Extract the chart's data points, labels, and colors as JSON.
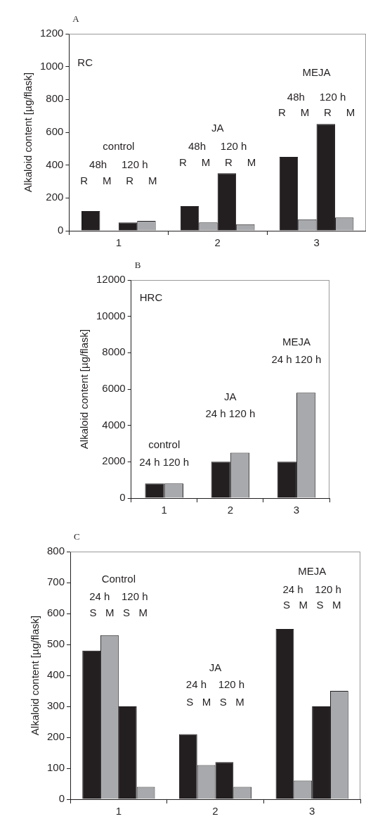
{
  "chart_data": [
    {
      "type": "bar",
      "title": "A",
      "ylabel": "Alkaloid content [µg/flask]",
      "categories": [
        "1",
        "2",
        "3"
      ],
      "series": [
        {
          "color": "#231f20",
          "values": [
            120,
            150,
            450
          ]
        },
        {
          "color": "#a7a9ac",
          "values": [
            null,
            50,
            70
          ]
        },
        {
          "color": "#231f20",
          "values": [
            50,
            350,
            650
          ]
        },
        {
          "color": "#a7a9ac",
          "values": [
            60,
            40,
            80
          ]
        }
      ],
      "ylim": [
        0,
        1200
      ],
      "yticks": [
        0,
        200,
        400,
        600,
        800,
        1000,
        1200
      ],
      "grid": false,
      "legend": false,
      "annotations": [
        "RC",
        "control",
        "48h     120 h",
        "R     M     R     M",
        "JA",
        "48h     120 h",
        "R     M     R     M",
        "MEJA",
        "48h     120 h",
        "R     M     R     M"
      ]
    },
    {
      "type": "bar",
      "title": "B",
      "ylabel": "Alkaloid content [µg/flask]",
      "categories": [
        "1",
        "2",
        "3"
      ],
      "series": [
        {
          "color": "#231f20",
          "values": [
            800,
            2000,
            2000
          ]
        },
        {
          "color": "#a7a9ac",
          "values": [
            800,
            2500,
            5800
          ]
        }
      ],
      "ylim": [
        0,
        12000
      ],
      "yticks": [
        0,
        2000,
        4000,
        6000,
        8000,
        10000,
        12000
      ],
      "grid": false,
      "legend": false,
      "annotations": [
        "HRC",
        "control",
        "24 h 120 h",
        "JA",
        "24 h 120 h",
        "MEJA",
        "24 h 120 h"
      ]
    },
    {
      "type": "bar",
      "title": "C",
      "ylabel": "Alkaloid content [µg/flask]",
      "categories": [
        "1",
        "2",
        "3"
      ],
      "series": [
        {
          "color": "#231f20",
          "values": [
            480,
            210,
            550
          ]
        },
        {
          "color": "#a7a9ac",
          "values": [
            530,
            110,
            60
          ]
        },
        {
          "color": "#231f20",
          "values": [
            300,
            120,
            300
          ]
        },
        {
          "color": "#a7a9ac",
          "values": [
            40,
            40,
            350
          ]
        }
      ],
      "ylim": [
        0,
        800
      ],
      "yticks": [
        0,
        100,
        200,
        300,
        400,
        500,
        600,
        700,
        800
      ],
      "grid": false,
      "legend": false,
      "annotations": [
        "Control",
        "24 h    120 h",
        "S   M   S   M",
        "JA",
        "24 h    120 h",
        "S   M   S   M",
        "MEJA",
        "24 h    120 h",
        "S   M   S   M"
      ]
    }
  ]
}
